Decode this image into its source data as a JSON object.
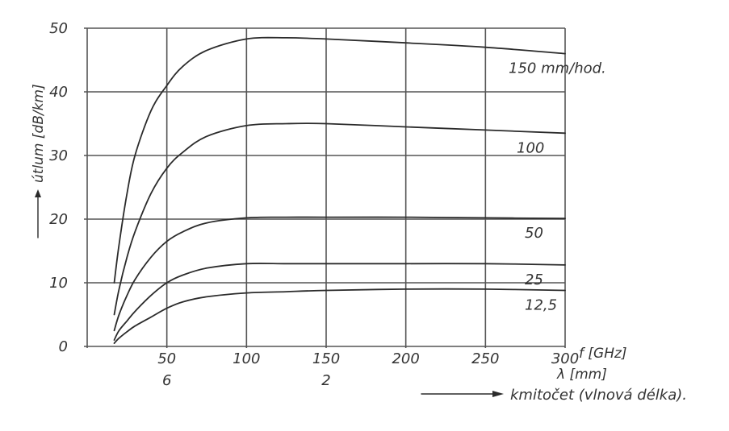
{
  "chart_data": {
    "type": "line",
    "title": "",
    "xlabel": "f [GHz]",
    "xlabel_secondary": "λ [mm]",
    "xlabel_caption": "kmitočet (vlnová délka).",
    "ylabel": "útlum [dB/km]",
    "xlim": [
      0,
      300
    ],
    "ylim": [
      0,
      50
    ],
    "x_ticks": [
      "50",
      "100",
      "150",
      "200",
      "250",
      "300"
    ],
    "x_ticks_secondary": [
      {
        "x": 50,
        "label": "6"
      },
      {
        "x": 150,
        "label": "2"
      }
    ],
    "y_ticks": [
      "0",
      "10",
      "20",
      "30",
      "40",
      "50"
    ],
    "grid": true,
    "series": [
      {
        "name": "150 mm/hod.",
        "x": [
          17,
          20,
          25,
          30,
          40,
          50,
          60,
          75,
          100,
          125,
          150,
          200,
          250,
          300
        ],
        "values": [
          10,
          16,
          24,
          30,
          37,
          41,
          44,
          46.5,
          48.3,
          48.5,
          48.3,
          47.7,
          47,
          46
        ]
      },
      {
        "name": "100",
        "x": [
          17,
          20,
          25,
          30,
          40,
          50,
          60,
          75,
          100,
          125,
          150,
          200,
          250,
          300
        ],
        "values": [
          5,
          9,
          14,
          18,
          24,
          28,
          30.5,
          33,
          34.7,
          35,
          35,
          34.5,
          34,
          33.5
        ]
      },
      {
        "name": "50",
        "x": [
          17,
          20,
          25,
          30,
          40,
          50,
          60,
          75,
          100,
          125,
          150,
          200,
          250,
          300
        ],
        "values": [
          2.5,
          5,
          8,
          10.5,
          14,
          16.5,
          18,
          19.4,
          20.2,
          20.3,
          20.3,
          20.3,
          20.2,
          20.1
        ]
      },
      {
        "name": "25",
        "x": [
          17,
          20,
          25,
          30,
          40,
          50,
          60,
          75,
          100,
          125,
          150,
          200,
          250,
          300
        ],
        "values": [
          1,
          2.5,
          4,
          5.5,
          8,
          10,
          11.2,
          12.3,
          13,
          13,
          13,
          13,
          13,
          12.8
        ]
      },
      {
        "name": "12,5",
        "x": [
          17,
          20,
          25,
          30,
          40,
          50,
          60,
          75,
          100,
          125,
          150,
          200,
          250,
          300
        ],
        "values": [
          0.5,
          1.3,
          2.3,
          3.2,
          4.6,
          6,
          7,
          7.8,
          8.4,
          8.6,
          8.8,
          9,
          9,
          8.8
        ]
      }
    ]
  }
}
